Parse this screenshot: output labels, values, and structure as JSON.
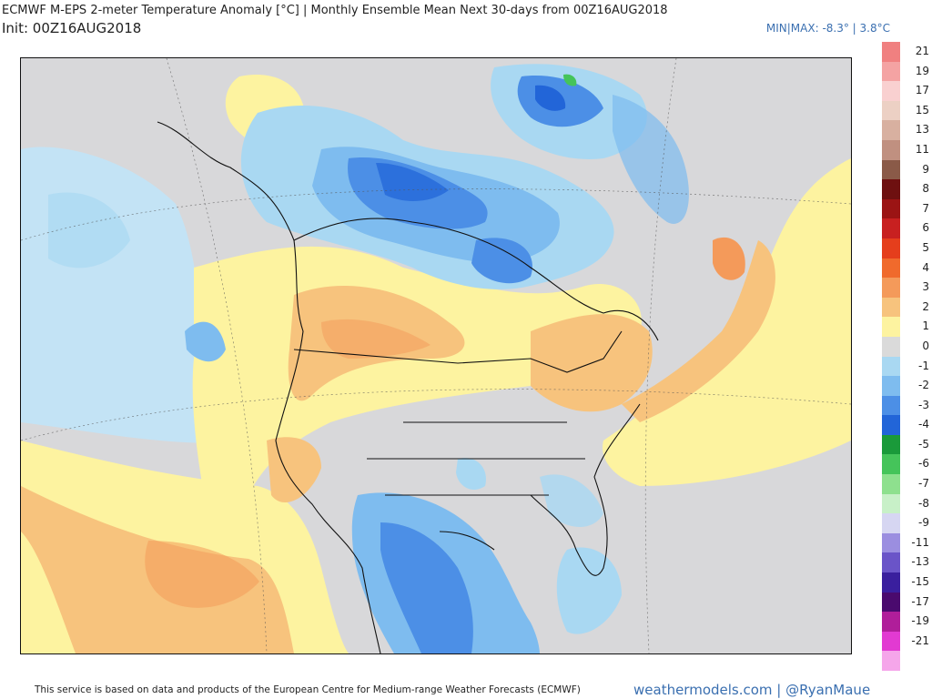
{
  "header": {
    "title": "ECMWF M-EPS 2-meter Temperature Anomaly [°C] | Monthly Ensemble Mean Next 30-days from 00Z16AUG2018",
    "init": "Init: 00Z16AUG2018",
    "minmax": "MIN|MAX: -8.3° | 3.8°C"
  },
  "map": {
    "region": "North America",
    "variable": "2-meter temperature anomaly",
    "units": "°C"
  },
  "legend": {
    "items": [
      {
        "label": "21",
        "color": "#f08080"
      },
      {
        "label": "19",
        "color": "#f4a3a3"
      },
      {
        "label": "17",
        "color": "#f9d0d0"
      },
      {
        "label": "15",
        "color": "#ecd0c4"
      },
      {
        "label": "13",
        "color": "#d8b0a0"
      },
      {
        "label": "11",
        "color": "#c09080"
      },
      {
        "label": "9",
        "color": "#8a5a48"
      },
      {
        "label": "8",
        "color": "#6e1010"
      },
      {
        "label": "7",
        "color": "#9b1414"
      },
      {
        "label": "6",
        "color": "#c82020"
      },
      {
        "label": "5",
        "color": "#e53e1c"
      },
      {
        "label": "4",
        "color": "#f06a2c"
      },
      {
        "label": "3",
        "color": "#f49a5a"
      },
      {
        "label": "2",
        "color": "#f7c37d"
      },
      {
        "label": "1",
        "color": "#fdf3a0"
      },
      {
        "label": "0",
        "color": "#dadada"
      },
      {
        "label": "-1",
        "color": "#a9d8f2"
      },
      {
        "label": "-2",
        "color": "#7ebcef"
      },
      {
        "label": "-3",
        "color": "#4c8fe6"
      },
      {
        "label": "-4",
        "color": "#2265d8"
      },
      {
        "label": "-5",
        "color": "#1a9a3a"
      },
      {
        "label": "-6",
        "color": "#45c45a"
      },
      {
        "label": "-7",
        "color": "#8ee08e"
      },
      {
        "label": "-8",
        "color": "#c8f0c8"
      },
      {
        "label": "-9",
        "color": "#d6d6f2"
      },
      {
        "label": "-11",
        "color": "#9b8ee0"
      },
      {
        "label": "-13",
        "color": "#6a54c8"
      },
      {
        "label": "-15",
        "color": "#3a1f9e"
      },
      {
        "label": "-17",
        "color": "#4a0a6e"
      },
      {
        "label": "-19",
        "color": "#b01e9a"
      },
      {
        "label": "-21",
        "color": "#e23ad2"
      },
      {
        "label": "",
        "color": "#f5a6ea"
      }
    ]
  },
  "footer": {
    "credit": "This service is based on data and products of the European Centre for Medium-range Weather Forecasts (ECMWF)",
    "brand": "weathermodels.com | @RyanMaue"
  }
}
